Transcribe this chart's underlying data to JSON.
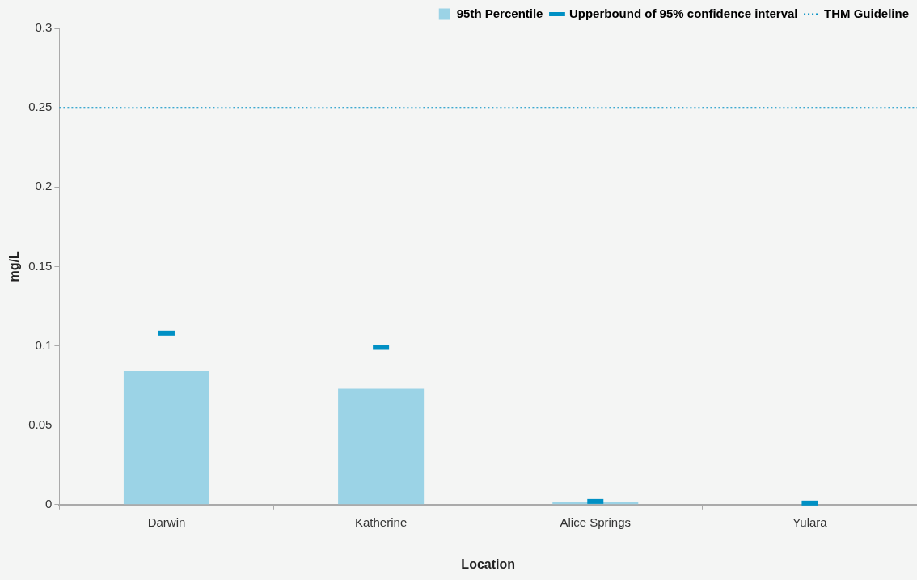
{
  "chart_data": {
    "type": "bar",
    "xlabel": "Location",
    "ylabel": "mg/L",
    "categories": [
      "Darwin",
      "Katherine",
      "Alice Springs",
      "Yulara"
    ],
    "series": [
      {
        "name": "95th Percentile",
        "color": "#9bd3e6",
        "values": [
          0.084,
          0.073,
          0.002,
          0
        ]
      },
      {
        "name": "Upperbound of 95% confidence interval",
        "type": "scatter",
        "color": "#0090c4",
        "values": [
          0.108,
          0.099,
          0.002,
          0.001
        ]
      }
    ],
    "ref_lines": [
      {
        "axis": "y",
        "value": 0.25,
        "label": "THM Guideline",
        "color": "#0090c4",
        "line_style": "dotted"
      }
    ],
    "ylim": [
      0,
      0.3
    ],
    "yticks": [
      0,
      0.05,
      0.1,
      0.15,
      0.2,
      0.25,
      0.3
    ],
    "grid": false,
    "legend": "top right"
  }
}
